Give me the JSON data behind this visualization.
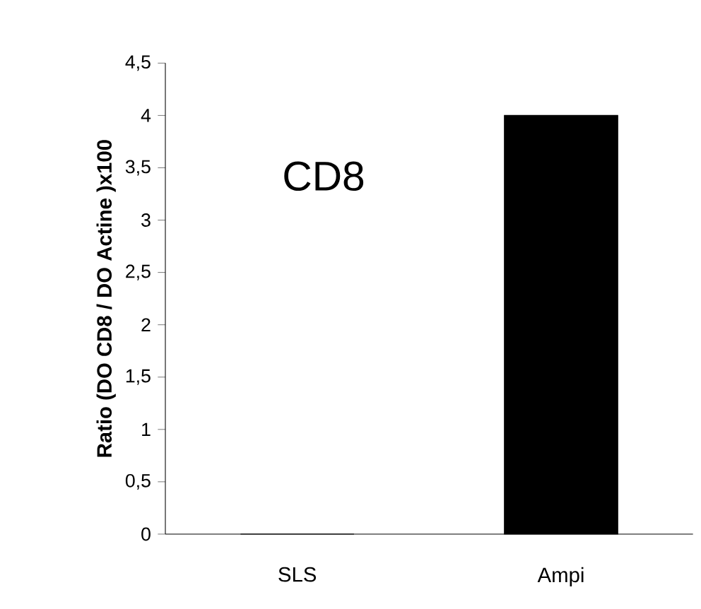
{
  "chart_data": {
    "type": "bar",
    "ylabel": "Ratio (DO CD8 / DO Actine )x100",
    "annotations": [
      "CD8"
    ],
    "categories": [
      "SLS",
      "Ampi"
    ],
    "values": [
      0,
      4
    ],
    "color": "#000000",
    "ylim": [
      0,
      4.5
    ],
    "yticks": [
      0,
      {
        "value": 0.5,
        "label": "0,5"
      },
      1,
      {
        "value": 1.5,
        "label": "1,5"
      },
      2,
      {
        "value": 2.5,
        "label": "2,5"
      },
      3,
      {
        "value": 3.5,
        "label": "3,5"
      },
      4,
      {
        "value": 4.5,
        "label": "4,5"
      }
    ],
    "grid": false
  }
}
